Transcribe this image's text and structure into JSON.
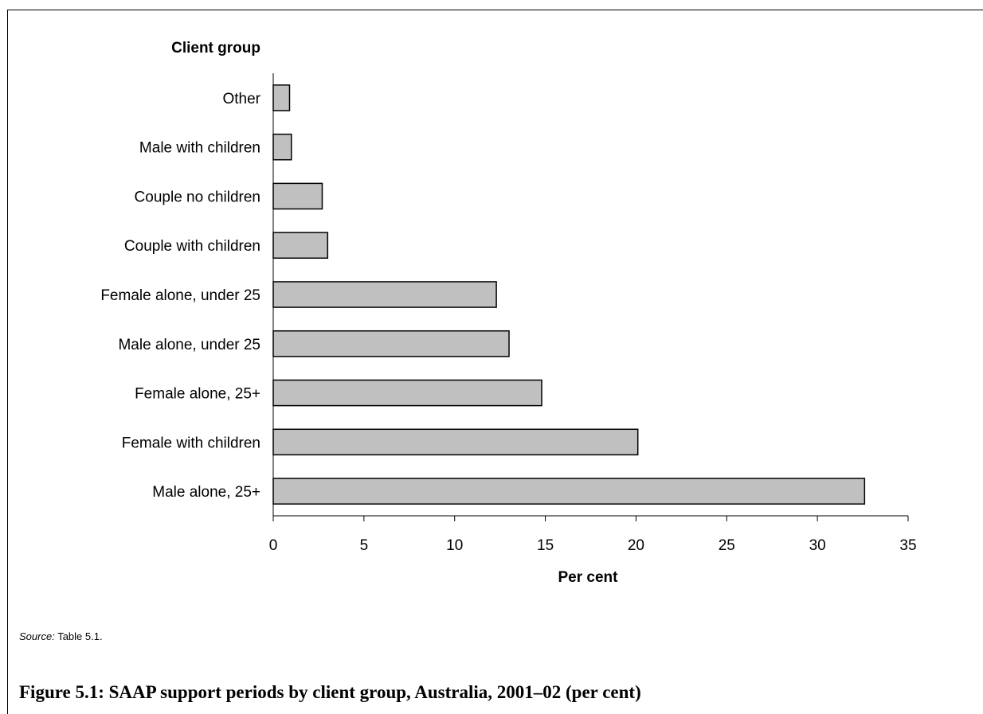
{
  "chart_data": {
    "type": "bar",
    "orientation": "horizontal",
    "categories": [
      "Other",
      "Male with children",
      "Couple no children",
      "Couple with children",
      "Female alone, under 25",
      "Male alone, under 25",
      "Female alone, 25+",
      "Female with children",
      "Male alone, 25+"
    ],
    "values": [
      0.9,
      1.0,
      2.7,
      3.0,
      12.3,
      13.0,
      14.8,
      20.1,
      32.6
    ],
    "xlabel": "Per cent",
    "ylabel": "Client group",
    "xlim": [
      0,
      35
    ],
    "xticks": [
      "0",
      "5",
      "10",
      "15",
      "20",
      "25",
      "30",
      "35"
    ],
    "grid": false,
    "bar_color": "#c0c0c0"
  },
  "source": {
    "label": "Source:",
    "text": " Table 5.1."
  },
  "caption": "Figure 5.1: SAAP support periods by client group, Australia, 2001–02 (per cent)"
}
